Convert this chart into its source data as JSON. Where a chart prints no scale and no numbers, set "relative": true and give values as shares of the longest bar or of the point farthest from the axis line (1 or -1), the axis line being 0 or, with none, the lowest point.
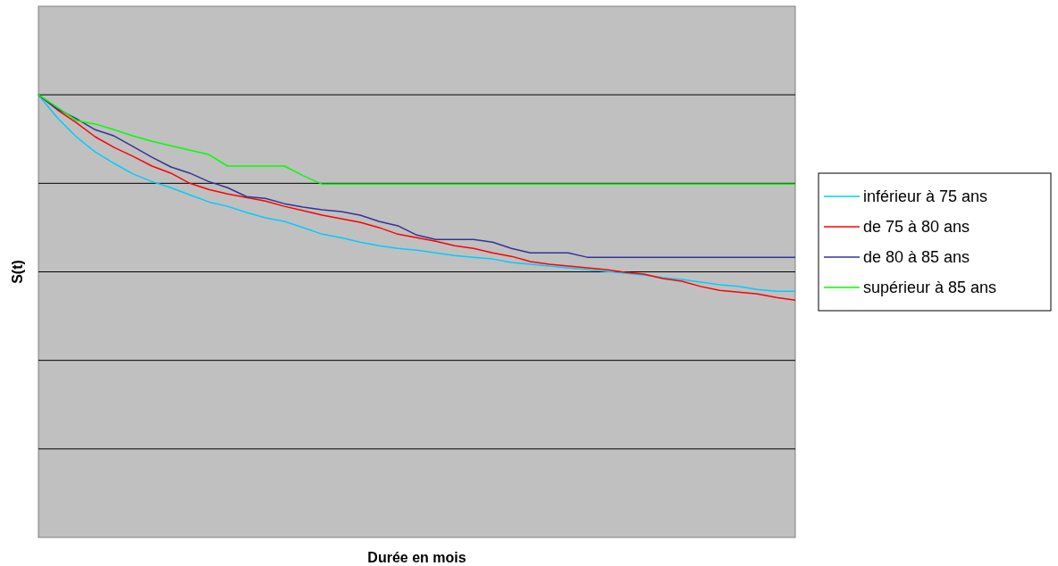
{
  "chart_data": {
    "type": "line",
    "relative": true,
    "xlabel": "Durée en mois",
    "ylabel": "S(t)",
    "grid": "y",
    "legend": "right",
    "categories": [
      null,
      null,
      null,
      null,
      null,
      null,
      null,
      null,
      null,
      null,
      null,
      null,
      null,
      null,
      null,
      null,
      null,
      null,
      null,
      null,
      null,
      null,
      null,
      null,
      null,
      null,
      null,
      null,
      null,
      null,
      null,
      null,
      null,
      null,
      null,
      null,
      null,
      null,
      null,
      null,
      null
    ],
    "series": [
      {
        "name": "inférieur à 75 ans",
        "color": "#00ccff",
        "values": [
          1,
          0.948,
          0.905,
          0.871,
          0.845,
          0.821,
          0.804,
          0.79,
          0.774,
          0.758,
          0.748,
          0.734,
          0.722,
          0.714,
          0.7,
          0.685,
          0.677,
          0.667,
          0.659,
          0.653,
          0.649,
          0.643,
          0.637,
          0.633,
          0.629,
          0.621,
          0.617,
          0.613,
          0.609,
          0.605,
          0.601,
          0.597,
          0.593,
          0.587,
          0.583,
          0.577,
          0.571,
          0.567,
          0.56,
          0.556,
          0.556
        ]
      },
      {
        "name": "de 75 à 80 ans",
        "color": "#ff0000",
        "values": [
          1,
          0.966,
          0.937,
          0.905,
          0.881,
          0.861,
          0.839,
          0.823,
          0.8,
          0.786,
          0.776,
          0.768,
          0.76,
          0.748,
          0.738,
          0.728,
          0.72,
          0.712,
          0.7,
          0.685,
          0.677,
          0.669,
          0.659,
          0.653,
          0.643,
          0.635,
          0.623,
          0.617,
          0.613,
          0.609,
          0.605,
          0.599,
          0.595,
          0.585,
          0.579,
          0.567,
          0.558,
          0.554,
          0.55,
          0.542,
          0.536
        ]
      },
      {
        "name": "de 80 à 85 ans",
        "color": "#333399",
        "values": [
          1,
          0.968,
          0.946,
          0.921,
          0.907,
          0.883,
          0.859,
          0.837,
          0.823,
          0.804,
          0.79,
          0.77,
          0.766,
          0.754,
          0.746,
          0.74,
          0.736,
          0.728,
          0.714,
          0.704,
          0.683,
          0.673,
          0.673,
          0.673,
          0.667,
          0.653,
          0.643,
          0.643,
          0.643,
          0.633,
          0.633,
          0.633,
          0.633,
          0.633,
          0.633,
          0.633,
          0.633,
          0.633,
          0.633,
          0.633,
          0.633
        ]
      },
      {
        "name": "supérieur à 85 ans",
        "color": "#00ff00",
        "values": [
          1,
          0.972,
          0.942,
          0.934,
          0.921,
          0.907,
          0.895,
          0.885,
          0.875,
          0.865,
          0.839,
          0.839,
          0.839,
          0.839,
          0.817,
          0.798,
          0.798,
          0.798,
          0.798,
          0.798,
          0.798,
          0.798,
          0.798,
          0.798,
          0.798,
          0.798,
          0.798,
          0.798,
          0.798,
          0.798,
          0.798,
          0.798,
          0.798,
          0.798,
          0.798,
          0.798,
          0.798,
          0.798,
          0.798,
          0.798,
          0.798
        ]
      }
    ]
  }
}
